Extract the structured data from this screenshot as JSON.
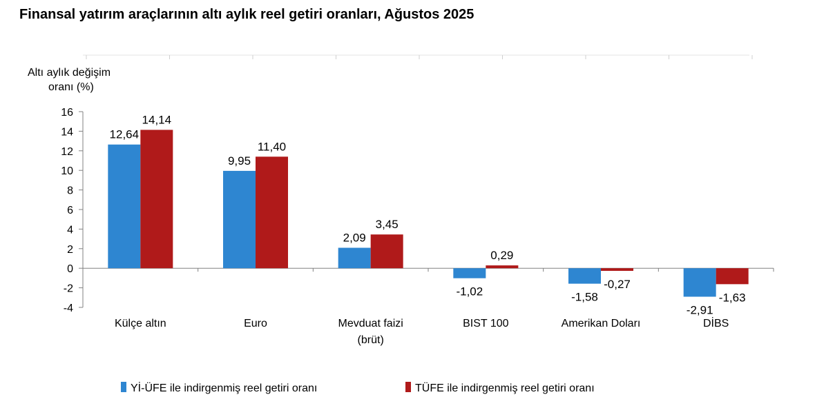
{
  "page_title": "Finansal yatırım araçlarının altı aylık reel getiri oranları, Ağustos 2025",
  "chart_data": {
    "type": "bar",
    "title": "Finansal yatırım araçlarının altı aylık reel getiri oranları, Ağustos 2025",
    "ylabel_line1": "Altı aylık değişim",
    "ylabel_line2": "oranı (%)",
    "ylim": [
      -4,
      16
    ],
    "yticks": [
      "16",
      "14",
      "12",
      "10",
      "8",
      "6",
      "4",
      "2",
      "0",
      "-2",
      "-4"
    ],
    "ytick_values": [
      16,
      14,
      12,
      10,
      8,
      6,
      4,
      2,
      0,
      -2,
      -4
    ],
    "categories": [
      [
        "Külçe altın"
      ],
      [
        "Euro"
      ],
      [
        "Mevduat faizi",
        "(brüt)"
      ],
      [
        "BIST 100"
      ],
      [
        "Amerikan Doları"
      ],
      [
        "DİBS"
      ]
    ],
    "series": [
      {
        "name": "Yİ-ÜFE ile indirgenmiş reel getiri oranı",
        "color": "#2E86D1",
        "values": [
          12.64,
          9.95,
          2.09,
          -1.02,
          -1.58,
          -2.91
        ],
        "labels": [
          "12,64",
          "9,95",
          "2,09",
          "-1,02",
          "-1,58",
          "-2,91"
        ]
      },
      {
        "name": "TÜFE ile indirgenmiş reel getiri oranı",
        "color": "#B01A1A",
        "values": [
          14.14,
          11.4,
          3.45,
          0.29,
          -0.27,
          -1.63
        ],
        "labels": [
          "14,14",
          "11,40",
          "3,45",
          "0,29",
          "-0,27",
          "-1,63"
        ]
      }
    ],
    "legend_position": "bottom"
  }
}
